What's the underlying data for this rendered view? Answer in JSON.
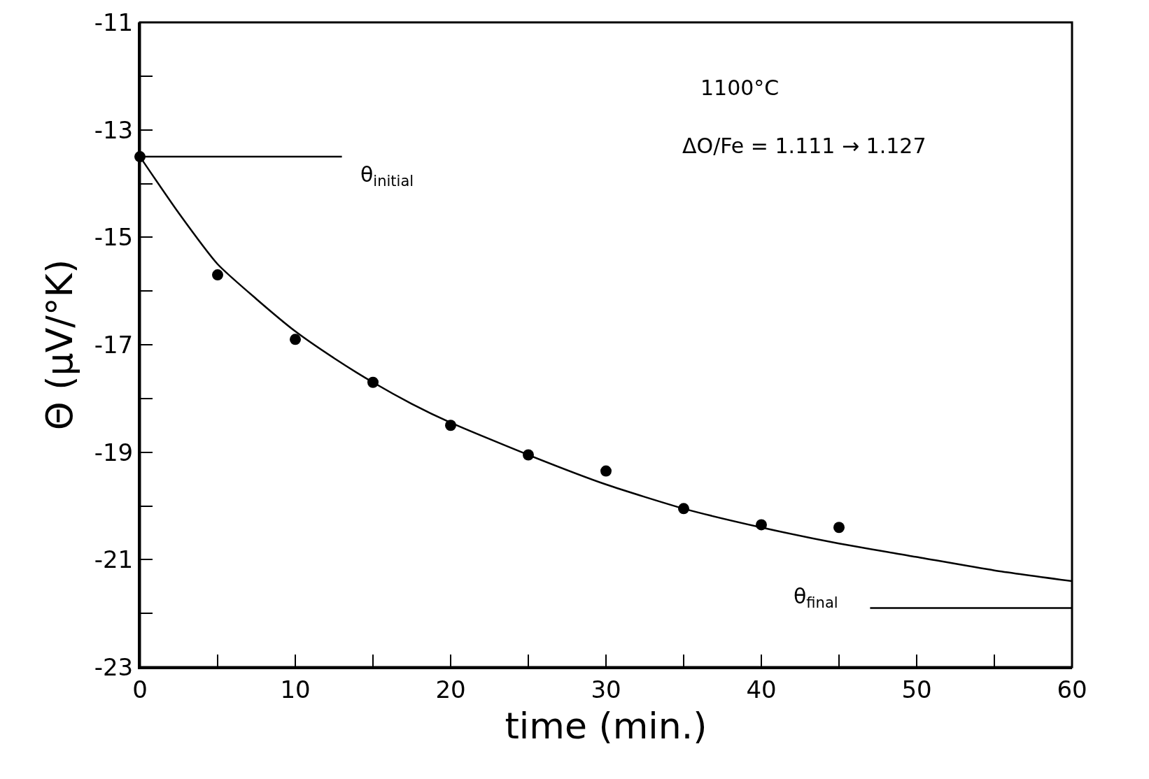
{
  "chart_data": {
    "type": "scatter",
    "xlabel": "time (min.)",
    "ylabel": "Θ (μV/°K)",
    "xlim": [
      0,
      60
    ],
    "ylim": [
      -23,
      -11
    ],
    "xticks": [
      0,
      10,
      20,
      30,
      40,
      50,
      60
    ],
    "yticks": [
      -23,
      -21,
      -19,
      -17,
      -15,
      -13,
      -11
    ],
    "marker": "circle",
    "series": [
      {
        "color": "#000000",
        "x": [
          0,
          5,
          10,
          15,
          20,
          25,
          30,
          35,
          40,
          45
        ],
        "values": [
          -13.5,
          -15.7,
          -16.9,
          -17.7,
          -18.5,
          -19.05,
          -19.35,
          -20.05,
          -20.35,
          -20.4
        ]
      },
      {
        "type": "line",
        "color": "#000000",
        "marker": "none",
        "line_style": "solid",
        "x": [
          0,
          2.5,
          5,
          7.5,
          10,
          12.5,
          15,
          17.5,
          20,
          25,
          30,
          35,
          40,
          45,
          50,
          55,
          60
        ],
        "values": [
          -13.5,
          -14.55,
          -15.5,
          -16.15,
          -16.75,
          -17.25,
          -17.7,
          -18.1,
          -18.45,
          -19.05,
          -19.6,
          -20.05,
          -20.4,
          -20.7,
          -20.95,
          -21.2,
          -21.4
        ]
      },
      {
        "type": "line",
        "color": "#000000",
        "marker": "none",
        "line_style": "solid",
        "x": [
          0,
          13
        ],
        "values": [
          -13.5,
          -13.5
        ]
      },
      {
        "type": "line",
        "color": "#000000",
        "marker": "none",
        "line_style": "solid",
        "x": [
          47,
          60
        ],
        "values": [
          -21.9,
          -21.9
        ]
      }
    ],
    "annotations": [
      "θ$_{initial}$",
      "θ$_{final}$",
      "1100°C",
      "ΔO/Fe = 1.111 → 1.127"
    ]
  }
}
